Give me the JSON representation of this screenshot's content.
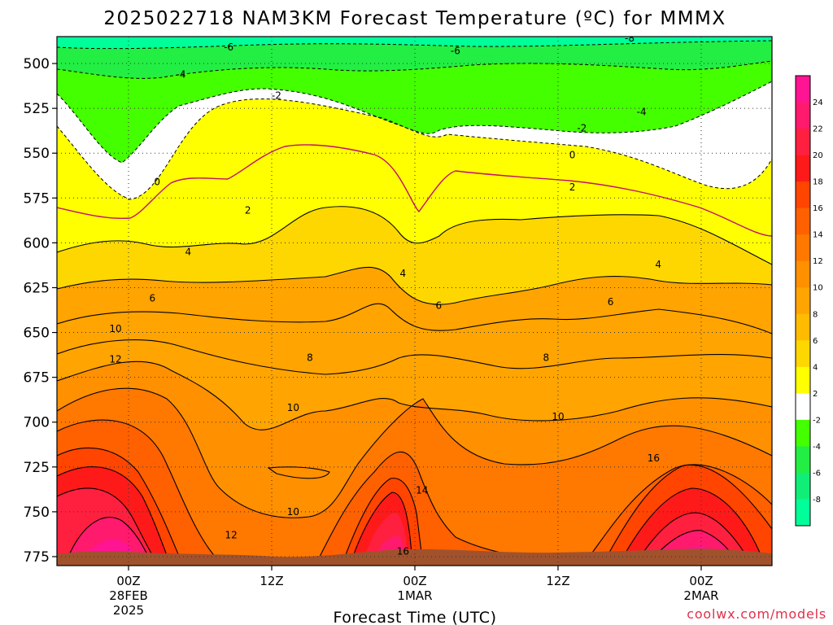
{
  "chart_data": {
    "type": "contour",
    "title": "2025022718 NAM3KM Forecast Temperature (ºC) for MMMX",
    "xlabel": "Forecast Time (UTC)",
    "ylabel": "",
    "credit": "coolwx.com/models",
    "y_ticks": [
      "500",
      "525",
      "550",
      "575",
      "600",
      "625",
      "650",
      "675",
      "700",
      "725",
      "750",
      "775"
    ],
    "ylim": [
      485,
      780
    ],
    "y_inverted": true,
    "x_ticks": [
      {
        "l1": "00Z",
        "l2": "28FEB",
        "l3": "2025"
      },
      {
        "l1": "12Z",
        "l2": "",
        "l3": ""
      },
      {
        "l1": "00Z",
        "l2": "1MAR",
        "l3": ""
      },
      {
        "l1": "12Z",
        "l2": "",
        "l3": ""
      },
      {
        "l1": "00Z",
        "l2": "2MAR",
        "l3": ""
      }
    ],
    "grid": true,
    "colorbar": {
      "labels": [
        "24",
        "22",
        "20",
        "18",
        "16",
        "14",
        "12",
        "10",
        "8",
        "6",
        "4",
        "2",
        "-2",
        "-4",
        "-6",
        "-8"
      ],
      "bands": [
        {
          "range": "above 24",
          "color": "#ff1493"
        },
        {
          "range": "22-24",
          "color": "#ff1a6e"
        },
        {
          "range": "20-22",
          "color": "#ff2040"
        },
        {
          "range": "18-20",
          "color": "#ff1a1a"
        },
        {
          "range": "16-18",
          "color": "#ff4500"
        },
        {
          "range": "14-16",
          "color": "#ff6000"
        },
        {
          "range": "12-14",
          "color": "#ff7800"
        },
        {
          "range": "10-12",
          "color": "#ff9000"
        },
        {
          "range": "8-10",
          "color": "#ffa400"
        },
        {
          "range": "6-8",
          "color": "#ffbb00"
        },
        {
          "range": "4-6",
          "color": "#ffd700"
        },
        {
          "range": "2-4",
          "color": "#ffff00"
        },
        {
          "range": "-2 to 2",
          "color": "#ffffff"
        },
        {
          "range": "-4 to -2",
          "color": "#44ff00"
        },
        {
          "range": "-6 to -4",
          "color": "#22ee44"
        },
        {
          "range": "-8 to -6",
          "color": "#11ee77"
        },
        {
          "range": "below -8",
          "color": "#00ff99"
        }
      ]
    },
    "contour_labels": [
      {
        "v": "-8",
        "t": 21.0,
        "p": 486
      },
      {
        "v": "-6",
        "t": 13.7,
        "p": 493
      },
      {
        "v": "-6",
        "t": 4.2,
        "p": 491
      },
      {
        "v": "-4",
        "t": 21.5,
        "p": 527
      },
      {
        "v": "-4",
        "t": 2.2,
        "p": 506
      },
      {
        "v": "-2",
        "t": 19.0,
        "p": 536
      },
      {
        "v": "-2",
        "t": 6.2,
        "p": 518
      },
      {
        "v": "0",
        "t": 18.6,
        "p": 551
      },
      {
        "v": "0",
        "t": 1.2,
        "p": 566
      },
      {
        "v": "2",
        "t": 18.6,
        "p": 569
      },
      {
        "v": "2",
        "t": 5.0,
        "p": 582
      },
      {
        "v": "4",
        "t": 2.5,
        "p": 605
      },
      {
        "v": "4",
        "t": 11.5,
        "p": 617
      },
      {
        "v": "4",
        "t": 22.2,
        "p": 612
      },
      {
        "v": "6",
        "t": 1.0,
        "p": 631
      },
      {
        "v": "6",
        "t": 13.0,
        "p": 635
      },
      {
        "v": "6",
        "t": 20.2,
        "p": 633
      },
      {
        "v": "8",
        "t": 7.6,
        "p": 664
      },
      {
        "v": "8",
        "t": 17.5,
        "p": 664
      },
      {
        "v": "10",
        "t": -1.0,
        "p": 648
      },
      {
        "v": "12",
        "t": -1.0,
        "p": 665
      },
      {
        "v": "10",
        "t": 6.9,
        "p": 692
      },
      {
        "v": "10",
        "t": 18.0,
        "p": 697
      },
      {
        "v": "10",
        "t": 6.9,
        "p": 750
      },
      {
        "v": "12",
        "t": 4.3,
        "p": 763
      },
      {
        "v": "14",
        "t": 12.3,
        "p": 738
      },
      {
        "v": "16",
        "t": 22.0,
        "p": 720
      },
      {
        "v": "16",
        "t": 11.5,
        "p": 772
      }
    ]
  }
}
